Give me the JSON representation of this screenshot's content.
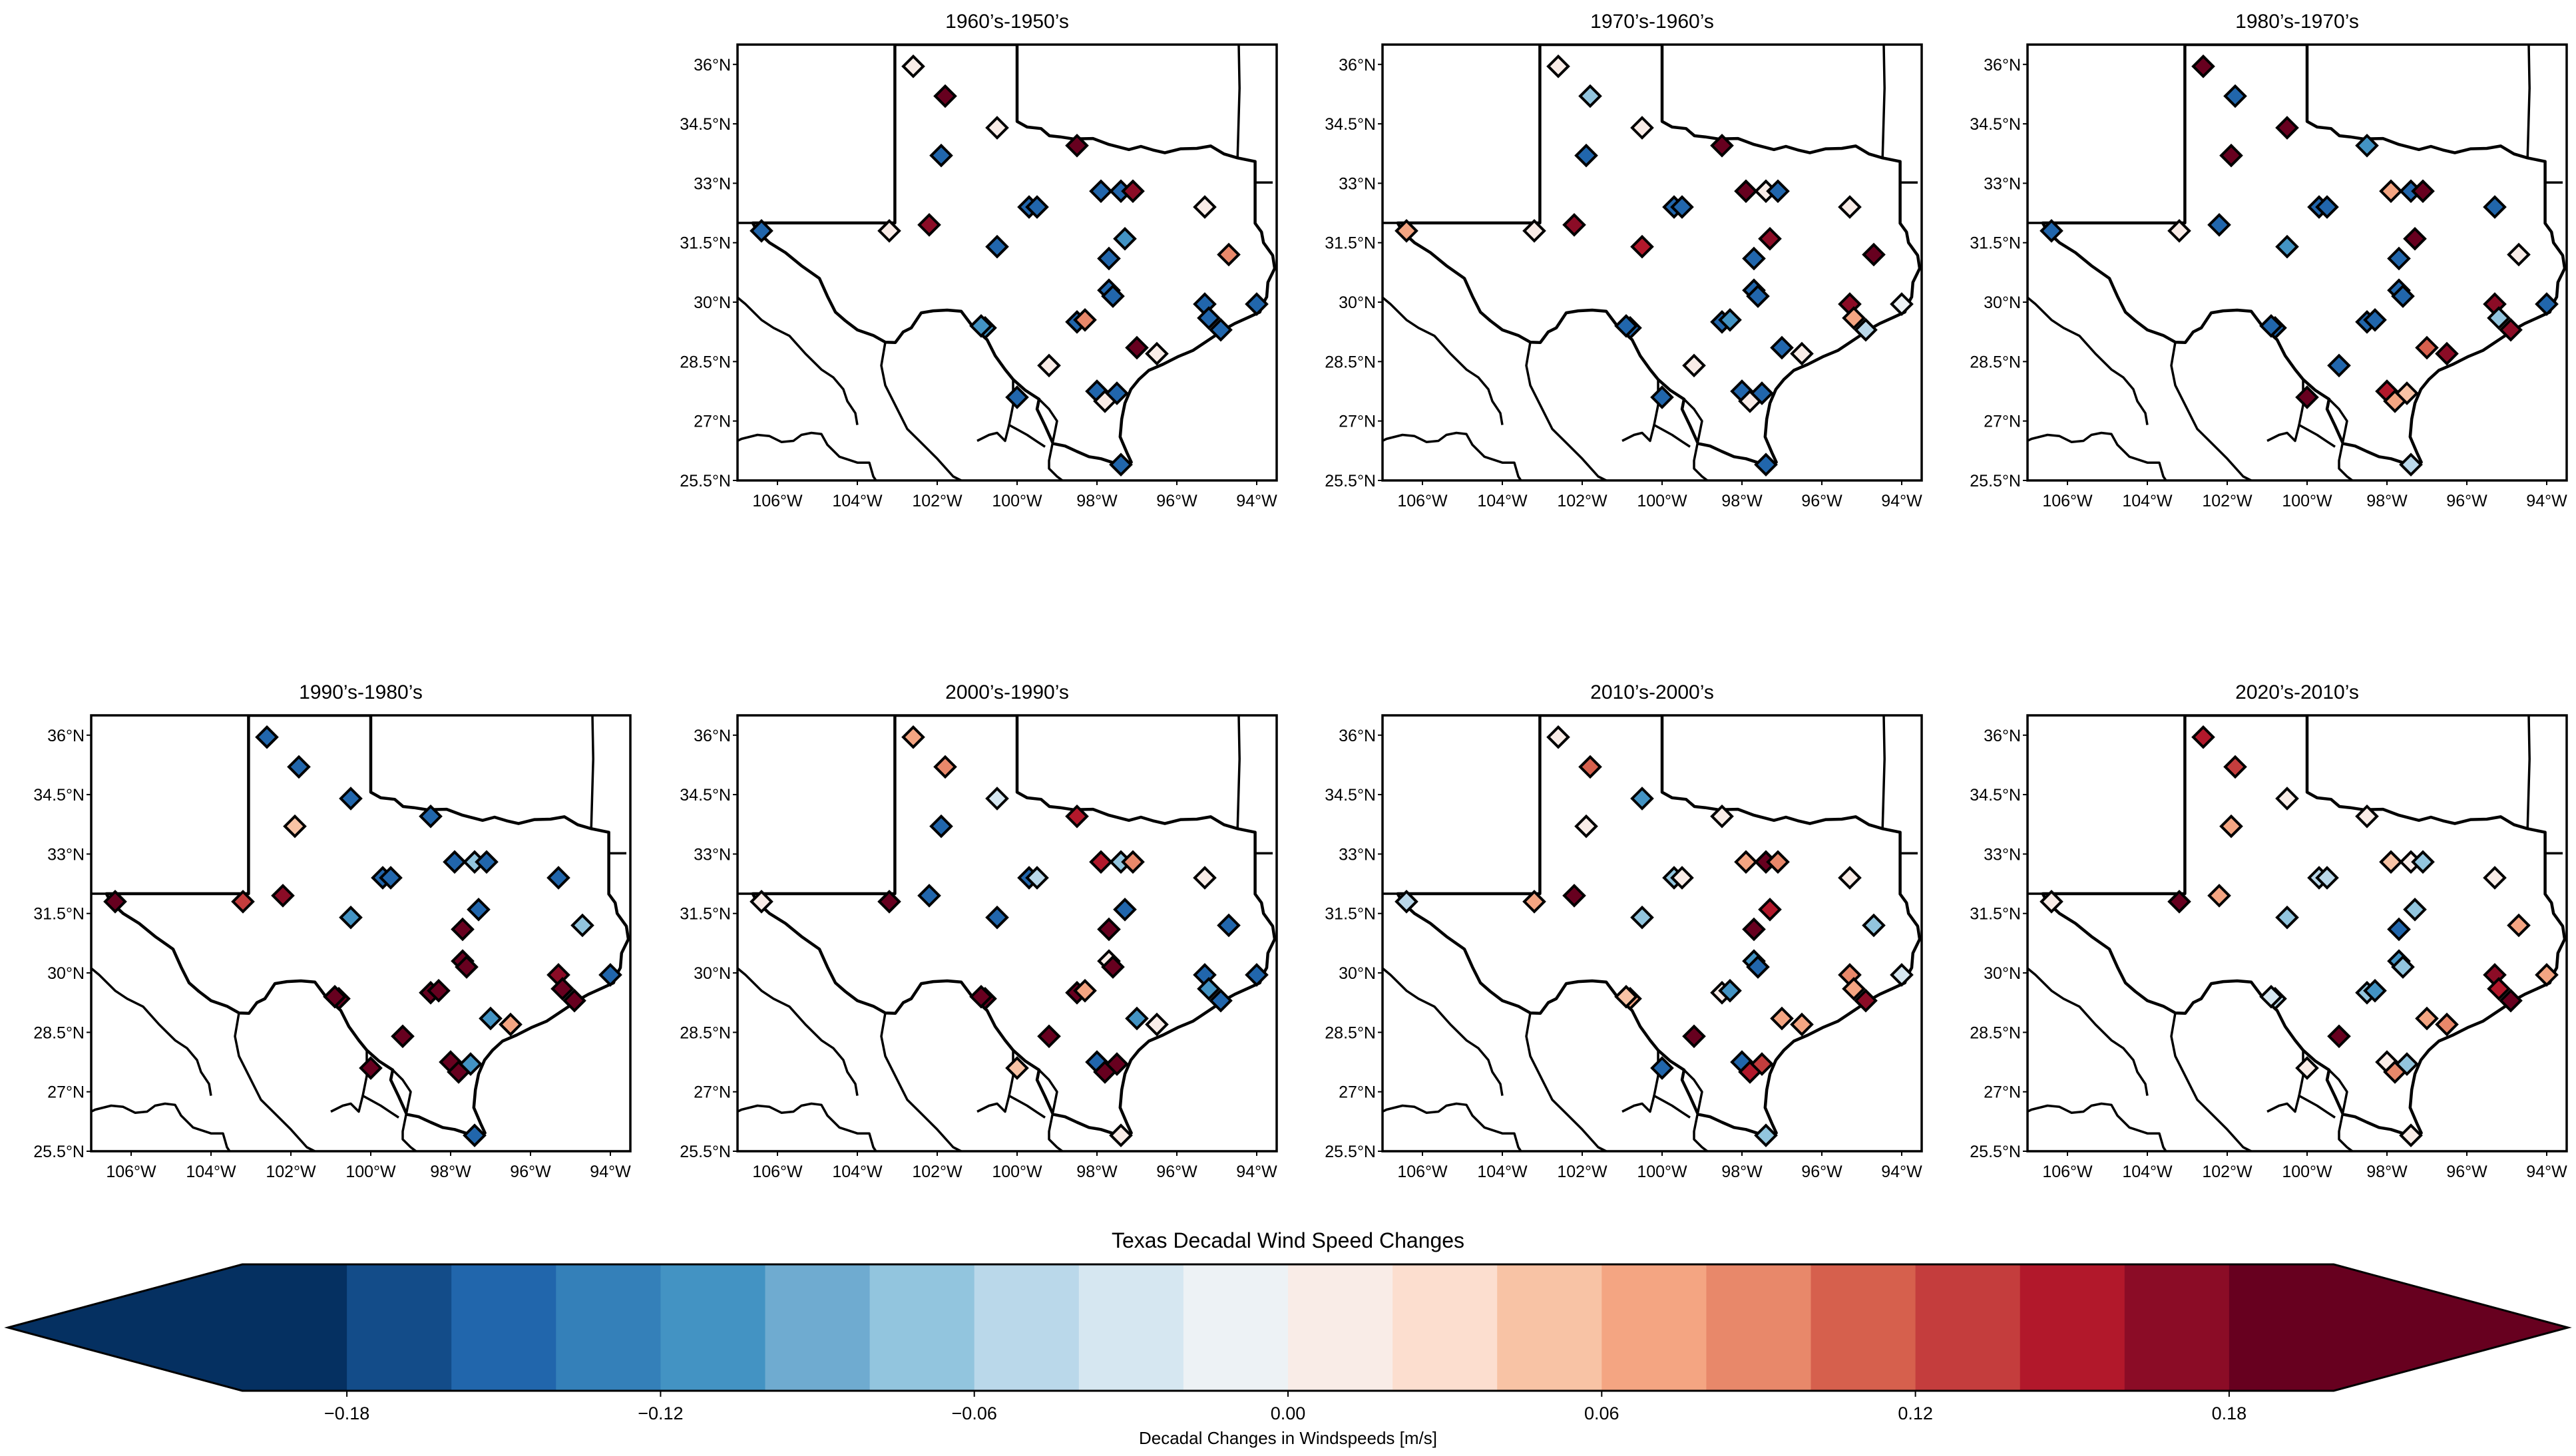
{
  "figure": {
    "colorbar_title": "Texas Decadal Wind Speed Changes",
    "colorbar_label": "Decadal Changes in Windspeeds [m/s]"
  },
  "colormap": [
    "#053061",
    "#134c89",
    "#2166ac",
    "#3480b9",
    "#4393c3",
    "#6fabd0",
    "#92c5de",
    "#bad8ea",
    "#d6e7f1",
    "#edf2f5",
    "#f9ece7",
    "#fcdecf",
    "#f8c3a5",
    "#f4a582",
    "#e8886a",
    "#d6604d",
    "#c43d3d",
    "#b2182b",
    "#8b0c26",
    "#67001f"
  ],
  "chart_data": {
    "type": "scatter-map",
    "region": "Texas",
    "lon_range": [
      -107,
      -93.5
    ],
    "lat_range": [
      25.5,
      36.5
    ],
    "lon_ticks": [
      -106,
      -104,
      -102,
      -100,
      -98,
      -96,
      -94
    ],
    "lon_tick_labels": [
      "106°W",
      "104°W",
      "102°W",
      "100°W",
      "98°W",
      "96°W",
      "94°W"
    ],
    "lat_ticks": [
      25.5,
      27,
      28.5,
      30,
      31.5,
      33,
      34.5,
      36
    ],
    "lat_tick_labels": [
      "25.5°N",
      "27°N",
      "28.5°N",
      "30°N",
      "31.5°N",
      "33°N",
      "34.5°N",
      "36°N"
    ],
    "colorbar": {
      "vmin": -0.2,
      "vmax": 0.2,
      "step": 0.02,
      "extend": "both",
      "ticks": [
        -0.18,
        -0.12,
        -0.06,
        0.0,
        0.06,
        0.12,
        0.18
      ],
      "tick_labels": [
        "−0.18",
        "−0.12",
        "−0.06",
        "0.00",
        "0.06",
        "0.12",
        "0.18"
      ]
    },
    "stations": [
      {
        "lon": -106.4,
        "lat": 31.8
      },
      {
        "lon": -103.2,
        "lat": 31.8
      },
      {
        "lon": -102.6,
        "lat": 35.95
      },
      {
        "lon": -101.8,
        "lat": 35.2
      },
      {
        "lon": -101.9,
        "lat": 33.7
      },
      {
        "lon": -102.2,
        "lat": 31.95
      },
      {
        "lon": -100.5,
        "lat": 34.4
      },
      {
        "lon": -99.7,
        "lat": 32.4
      },
      {
        "lon": -99.5,
        "lat": 32.4
      },
      {
        "lon": -100.5,
        "lat": 31.4
      },
      {
        "lon": -98.5,
        "lat": 33.95
      },
      {
        "lon": -97.9,
        "lat": 32.8
      },
      {
        "lon": -97.4,
        "lat": 32.8
      },
      {
        "lon": -97.1,
        "lat": 32.8
      },
      {
        "lon": -97.3,
        "lat": 31.6
      },
      {
        "lon": -95.3,
        "lat": 32.4
      },
      {
        "lon": -94.7,
        "lat": 31.2
      },
      {
        "lon": -97.7,
        "lat": 31.1
      },
      {
        "lon": -97.7,
        "lat": 30.3
      },
      {
        "lon": -97.6,
        "lat": 30.15
      },
      {
        "lon": -98.5,
        "lat": 29.5
      },
      {
        "lon": -98.3,
        "lat": 29.55
      },
      {
        "lon": -100.8,
        "lat": 29.35
      },
      {
        "lon": -100.9,
        "lat": 29.4
      },
      {
        "lon": -99.2,
        "lat": 28.4
      },
      {
        "lon": -100.0,
        "lat": 27.6
      },
      {
        "lon": -98.0,
        "lat": 27.75
      },
      {
        "lon": -97.8,
        "lat": 27.5
      },
      {
        "lon": -97.5,
        "lat": 27.7
      },
      {
        "lon": -97.4,
        "lat": 25.9
      },
      {
        "lon": -97.0,
        "lat": 28.85
      },
      {
        "lon": -96.5,
        "lat": 28.7
      },
      {
        "lon": -95.3,
        "lat": 29.95
      },
      {
        "lon": -95.2,
        "lat": 29.6
      },
      {
        "lon": -94.9,
        "lat": 29.3
      },
      {
        "lon": -94.0,
        "lat": 29.95
      }
    ],
    "panels": [
      {
        "title": "1960’s-1950’s",
        "values": [
          -0.16,
          0,
          0,
          0.18,
          -0.16,
          0.16,
          0,
          -0.16,
          -0.16,
          -0.16,
          0.18,
          -0.16,
          -0.16,
          0.16,
          -0.12,
          0,
          0.08,
          -0.16,
          -0.16,
          -0.16,
          -0.16,
          0.08,
          -0.12,
          -0.12,
          0,
          -0.16,
          -0.16,
          0,
          -0.16,
          -0.16,
          0.18,
          0,
          -0.16,
          -0.16,
          -0.16,
          -0.16
        ]
      },
      {
        "title": "1970’s-1960’s",
        "values": [
          0.06,
          0,
          0,
          -0.08,
          -0.16,
          0.16,
          0,
          -0.16,
          -0.16,
          0.14,
          0.18,
          0.18,
          0,
          -0.16,
          0.16,
          0,
          0.18,
          -0.16,
          -0.16,
          -0.16,
          -0.16,
          -0.12,
          -0.16,
          -0.16,
          0,
          -0.16,
          -0.16,
          0,
          -0.16,
          -0.16,
          -0.16,
          0,
          0.16,
          0.06,
          -0.06,
          -0.02
        ]
      },
      {
        "title": "1980’s-1970’s",
        "values": [
          -0.16,
          0,
          0.18,
          -0.16,
          0.18,
          -0.16,
          0.18,
          -0.16,
          -0.16,
          -0.12,
          -0.12,
          0.06,
          -0.16,
          0.18,
          0.18,
          -0.16,
          0,
          -0.16,
          -0.16,
          -0.16,
          -0.16,
          -0.16,
          -0.16,
          -0.16,
          -0.16,
          0.18,
          0.14,
          0.06,
          0.04,
          -0.06,
          0.1,
          0.16,
          0.16,
          -0.08,
          0.16,
          -0.16
        ]
      },
      {
        "title": "1990’s-1980’s",
        "values": [
          0.18,
          0.12,
          -0.16,
          -0.16,
          0.04,
          0.16,
          -0.16,
          -0.16,
          -0.16,
          -0.12,
          -0.16,
          -0.16,
          -0.08,
          -0.16,
          -0.16,
          -0.16,
          -0.08,
          0.18,
          0.18,
          0.18,
          0.18,
          0.18,
          0.18,
          0.18,
          0.18,
          0.18,
          0.18,
          0.18,
          -0.12,
          -0.16,
          -0.12,
          0.06,
          0.16,
          0.18,
          0.18,
          -0.16
        ]
      },
      {
        "title": "2000’s-1990’s",
        "values": [
          0,
          0.18,
          0.06,
          0.08,
          -0.16,
          -0.16,
          -0.04,
          -0.16,
          -0.06,
          -0.16,
          0.14,
          0.14,
          -0.08,
          0.08,
          -0.16,
          0,
          -0.16,
          0.18,
          0,
          0.18,
          0.18,
          0.06,
          0.18,
          0.18,
          0.18,
          0.04,
          -0.16,
          0.18,
          0.18,
          0,
          -0.12,
          0,
          -0.16,
          -0.12,
          -0.16,
          -0.16
        ]
      },
      {
        "title": "2010’s-2000’s",
        "values": [
          -0.06,
          0.06,
          0,
          0.1,
          0,
          0.18,
          -0.12,
          -0.08,
          0,
          -0.08,
          0,
          0.06,
          0.18,
          0.08,
          0.14,
          0,
          -0.08,
          0.18,
          -0.12,
          -0.16,
          0,
          -0.12,
          0.06,
          0.04,
          0.18,
          -0.16,
          -0.16,
          0.14,
          0.12,
          -0.08,
          0.06,
          0.06,
          0.08,
          0.06,
          0.16,
          -0.04
        ]
      },
      {
        "title": "2020’s-2010’s",
        "values": [
          0,
          0.18,
          0.14,
          0.12,
          0.06,
          0.06,
          0,
          -0.06,
          -0.06,
          -0.08,
          0,
          0.04,
          0,
          -0.08,
          -0.08,
          0,
          0.06,
          -0.16,
          -0.12,
          -0.08,
          -0.08,
          -0.12,
          -0.06,
          -0.04,
          0.18,
          0,
          0,
          0.08,
          -0.08,
          0,
          0.06,
          0.08,
          0.16,
          0.14,
          0.18,
          0.06
        ]
      }
    ]
  }
}
